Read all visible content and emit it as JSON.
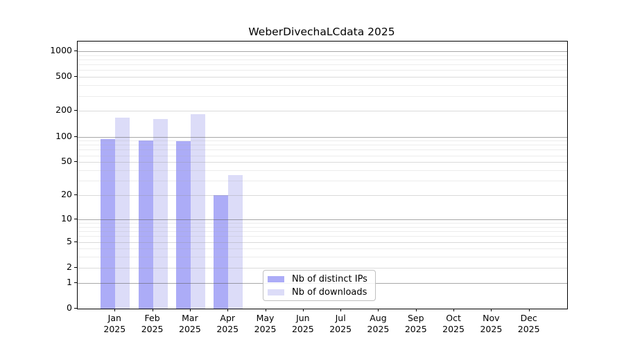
{
  "title": "WeberDivechaLCdata 2025",
  "chart_data": {
    "type": "bar",
    "title": "WeberDivechaLCdata 2025",
    "x_categories": [
      "Jan",
      "Feb",
      "Mar",
      "Apr",
      "May",
      "Jun",
      "Jul",
      "Aug",
      "Sep",
      "Oct",
      "Nov",
      "Dec"
    ],
    "x_year": "2025",
    "series": [
      {
        "name": "Nb of distinct IPs",
        "color": "#acacf7",
        "values": [
          94,
          91,
          88,
          20,
          0,
          0,
          0,
          0,
          0,
          0,
          0,
          0
        ]
      },
      {
        "name": "Nb of downloads",
        "color": "#dcdcf8",
        "values": [
          167,
          162,
          184,
          35,
          0,
          0,
          0,
          0,
          0,
          0,
          0,
          0
        ]
      }
    ],
    "y_ticks": [
      0,
      1,
      2,
      5,
      10,
      20,
      50,
      100,
      200,
      500,
      1000
    ],
    "y_major_decades": [
      1,
      10,
      100,
      1000
    ],
    "y_minor_gridlines": [
      3,
      4,
      6,
      7,
      8,
      9,
      30,
      40,
      60,
      70,
      80,
      90,
      300,
      400,
      600,
      700,
      800,
      900
    ],
    "y_scale": "log10(value+1)",
    "ylim": [
      0,
      1000
    ],
    "grid": true,
    "legend_position": "inside-lower-left-of-center",
    "axis_color": "#000000",
    "background_color": "#ffffff"
  }
}
